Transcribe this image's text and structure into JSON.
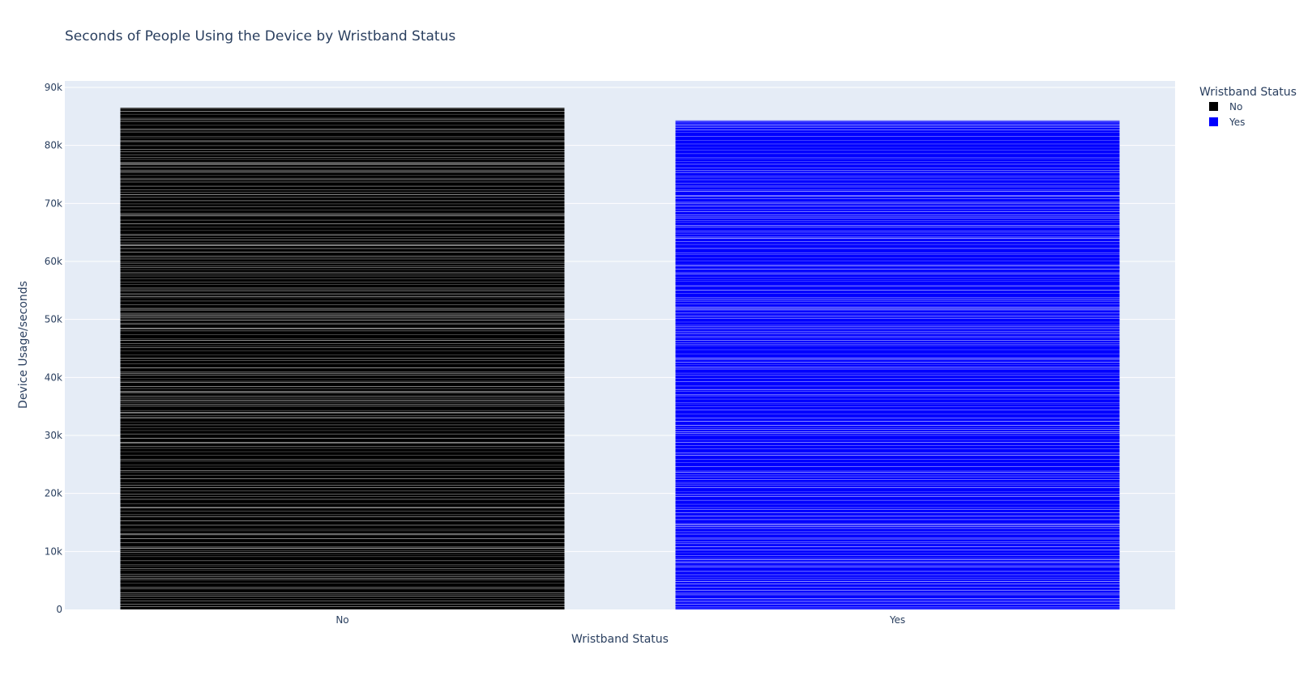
{
  "chart_data": {
    "type": "bar",
    "title": "Seconds of People Using the Device by Wristband Status",
    "xlabel": "Wristband Status",
    "ylabel": "Device Usage/seconds",
    "categories": [
      "No",
      "Yes"
    ],
    "values": [
      86500,
      84300
    ],
    "ylim": [
      0,
      90000
    ],
    "yticks": [
      0,
      10000,
      20000,
      30000,
      40000,
      50000,
      60000,
      70000,
      80000,
      90000
    ],
    "ytick_labels": [
      "0",
      "10k",
      "20k",
      "30k",
      "40k",
      "50k",
      "60k",
      "70k",
      "80k",
      "90k"
    ],
    "colors": [
      "#000000",
      "#0000ff"
    ],
    "grid": true,
    "legend": {
      "title": "Wristband Status",
      "position": "top-right",
      "entries": [
        {
          "name": "No",
          "color": "#000000"
        },
        {
          "name": "Yes",
          "color": "#0000ff"
        }
      ]
    },
    "plot_background": "#e5ecf6",
    "stack_segment_color": "#ffffff"
  }
}
